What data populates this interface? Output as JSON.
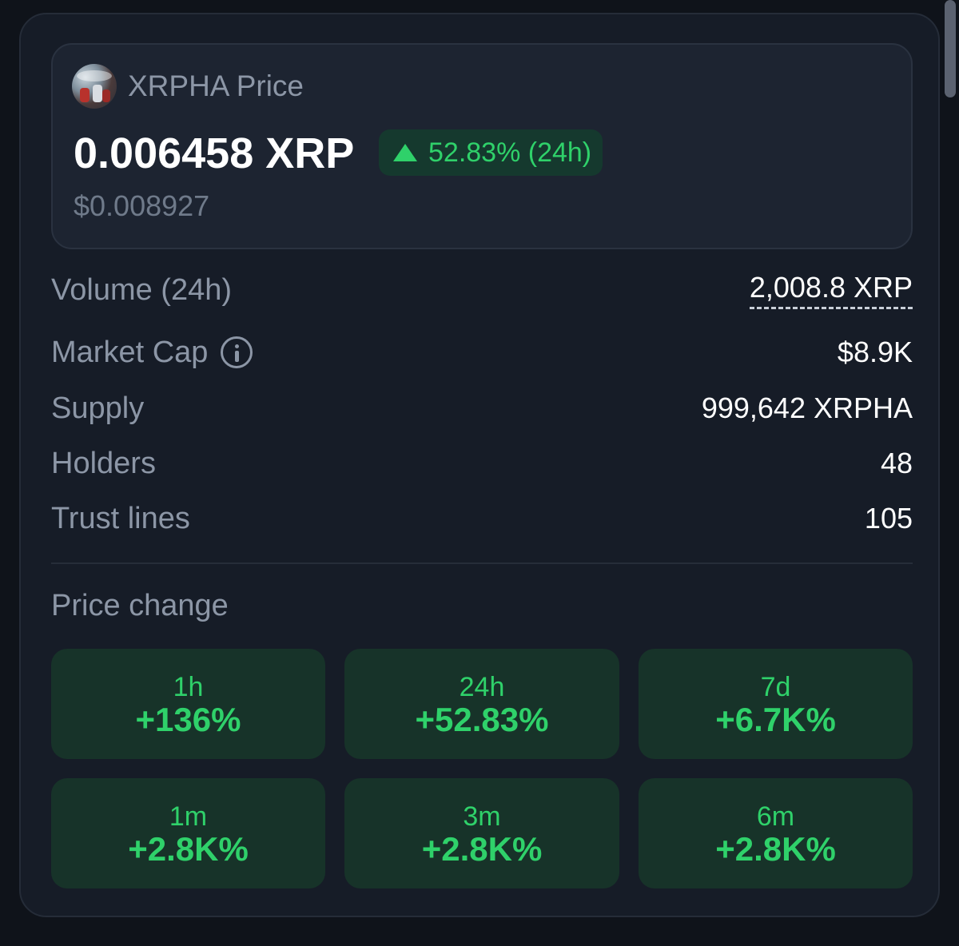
{
  "header": {
    "title": "XRPHA Price",
    "price": "0.006458 XRP",
    "change": "52.83% (24h)",
    "usd_price": "$0.008927"
  },
  "stats": [
    {
      "label": "Volume (24h)",
      "value": "2,008.8 XRP"
    },
    {
      "label": "Market Cap",
      "value": "$8.9K"
    },
    {
      "label": "Supply",
      "value": "999,642 XRPHA"
    },
    {
      "label": "Holders",
      "value": "48"
    },
    {
      "label": "Trust lines",
      "value": "105"
    }
  ],
  "price_change": {
    "title": "Price change",
    "periods": [
      {
        "period": "1h",
        "value": "+136%"
      },
      {
        "period": "24h",
        "value": "+52.83%"
      },
      {
        "period": "7d",
        "value": "+6.7K%"
      },
      {
        "period": "1m",
        "value": "+2.8K%"
      },
      {
        "period": "3m",
        "value": "+2.8K%"
      },
      {
        "period": "6m",
        "value": "+2.8K%"
      }
    ]
  },
  "colors": {
    "positive": "#2fd16a",
    "card_bg": "#161c27",
    "tile_bg": "#173329"
  }
}
